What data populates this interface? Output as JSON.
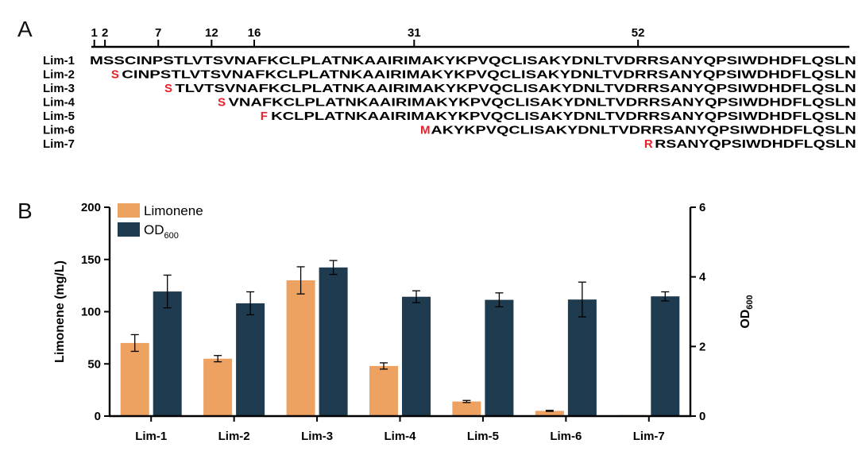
{
  "panel_a": {
    "label": "A",
    "ruler_positions": [
      "1",
      "2",
      "7",
      "12",
      "16",
      "31",
      "52"
    ],
    "rows": [
      {
        "name": "Lim-1",
        "start": 1,
        "highlight": "",
        "rest": "MSSCINPSTLVTSVNAFKCLPLATNKAAIRIMAKYKPVQCLISAKYDNLTVDRRSANYQPSIWDHDFLQSLN"
      },
      {
        "name": "Lim-2",
        "start": 3,
        "highlight": "S",
        "rest": "CINPSTLVTSVNAFKCLPLATNKAAIRIMAKYKPVQCLISAKYDNLTVDRRSANYQPSIWDHDFLQSLN"
      },
      {
        "name": "Lim-3",
        "start": 8,
        "highlight": "S",
        "rest": "TLVTSVNAFKCLPLATNKAAIRIMAKYKPVQCLISAKYDNLTVDRRSANYQPSIWDHDFLQSLN"
      },
      {
        "name": "Lim-4",
        "start": 13,
        "highlight": "S",
        "rest": "VNAFKCLPLATNKAAIRIMAKYKPVQCLISAKYDNLTVDRRSANYQPSIWDHDFLQSLN"
      },
      {
        "name": "Lim-5",
        "start": 17,
        "highlight": "F",
        "rest": "KCLPLATNKAAIRIMAKYKPVQCLISAKYDNLTVDRRSANYQPSIWDHDFLQSLN"
      },
      {
        "name": "Lim-6",
        "start": 32,
        "highlight": "M",
        "rest": "AKYKPVQCLISAKYDNLTVDRRSANYQPSIWDHDFLQSLN"
      },
      {
        "name": "Lim-7",
        "start": 53,
        "highlight": "R",
        "rest": "RSANYQPSIWDHDFLQSLN"
      }
    ],
    "highlight_color": "#e8202a"
  },
  "chart_data": {
    "type": "bar",
    "panel_label": "B",
    "categories": [
      "Lim-1",
      "Lim-2",
      "Lim-3",
      "Lim-4",
      "Lim-5",
      "Lim-6",
      "Lim-7"
    ],
    "ylabel": "Limonene (mg/L)",
    "y2label": "OD",
    "y2label_sub": "600",
    "ylim": [
      0,
      200
    ],
    "yticks": [
      "0",
      "50",
      "100",
      "150",
      "200"
    ],
    "y2lim": [
      0,
      6
    ],
    "y2ticks": [
      "0",
      "2",
      "4",
      "6"
    ],
    "legend_placement": "top-left",
    "grid": false,
    "series": [
      {
        "name": "Limonene",
        "axis": "left",
        "color": "#eda262",
        "values": [
          70,
          55,
          130,
          48,
          14,
          5,
          1
        ],
        "errors": [
          8,
          3,
          13,
          3,
          1,
          0.5,
          0
        ]
      },
      {
        "name": "OD",
        "name_sub": "600",
        "axis": "right",
        "color": "#1f3b4f",
        "values": [
          3.58,
          3.24,
          4.27,
          3.43,
          3.34,
          3.35,
          3.44
        ],
        "errors": [
          0.47,
          0.33,
          0.2,
          0.17,
          0.2,
          0.5,
          0.13
        ]
      }
    ]
  }
}
